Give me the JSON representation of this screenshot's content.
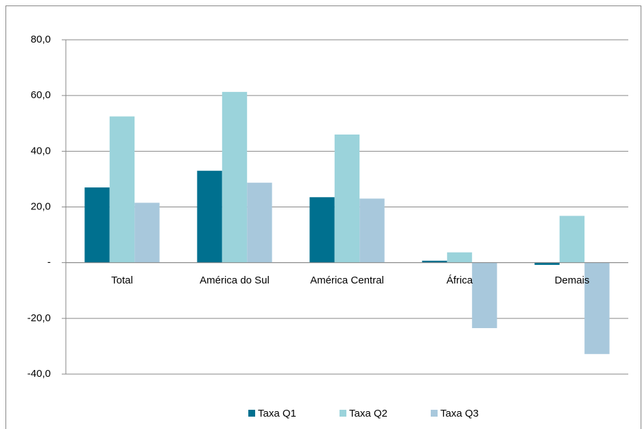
{
  "chart_data": {
    "type": "bar",
    "categories": [
      "Total",
      "América do Sul",
      "América Central",
      "África",
      "Demais"
    ],
    "series": [
      {
        "name": "Taxa Q1",
        "color": "#00708f",
        "values": [
          27.0,
          33.0,
          23.5,
          0.7,
          -0.8
        ]
      },
      {
        "name": "Taxa Q2",
        "color": "#9bd3db",
        "values": [
          52.5,
          61.3,
          46.0,
          3.7,
          16.8
        ]
      },
      {
        "name": "Taxa Q3",
        "color": "#a8c8dc",
        "values": [
          21.5,
          28.7,
          23.0,
          -23.5,
          -32.8
        ]
      }
    ],
    "ylim": [
      -40,
      80
    ],
    "yticks": [
      {
        "value": -40,
        "label": "-40,0"
      },
      {
        "value": -20,
        "label": "-20,0"
      },
      {
        "value": 0,
        "label": "-"
      },
      {
        "value": 20,
        "label": "20,0"
      },
      {
        "value": 40,
        "label": "40,0"
      },
      {
        "value": 60,
        "label": "60,0"
      },
      {
        "value": 80,
        "label": "80,0"
      }
    ],
    "grid": true,
    "legend": "bottom"
  }
}
